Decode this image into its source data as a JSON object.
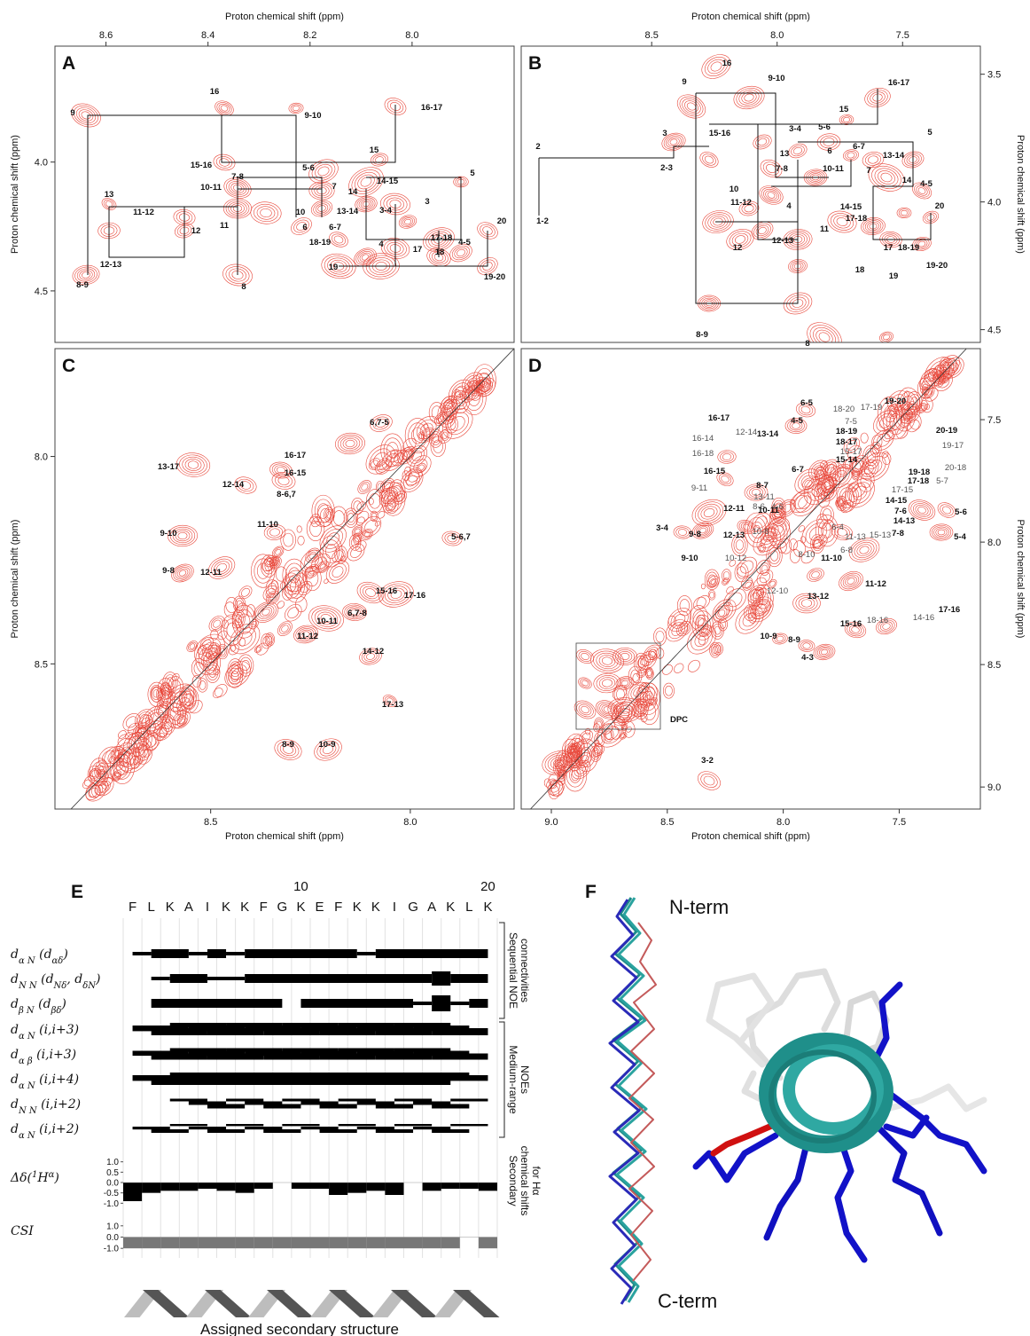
{
  "chart_data": [
    {
      "type": "contour",
      "panel_label": "A",
      "xlabel": "Proton chemical shift (ppm)",
      "ylabel": "Proton chemical shift (ppm)",
      "xaxis": "top",
      "yaxis": "left",
      "xlim": [
        8.7,
        7.8
      ],
      "ylim": [
        4.7,
        3.55
      ],
      "xticks": [
        8.6,
        8.4,
        8.2,
        {
          "value": 8,
          "label": "8.0"
        }
      ],
      "yticks": [
        {
          "value": 4,
          "label": "4.0"
        },
        4.5
      ],
      "annotations": [
        "9",
        "16",
        "9-10",
        "16-17",
        "15-16",
        "15",
        "5-6",
        "5",
        "13",
        "10-11",
        "7-8",
        "7",
        "14-15",
        "14",
        "13-14",
        "3-4",
        "3",
        "11-12",
        "10",
        "11",
        "6",
        "6-7",
        "17-18",
        "20",
        "12",
        "18-19",
        "4",
        "17",
        "18",
        "4-5",
        "12-13",
        "19",
        "8-9",
        "8",
        "19-20"
      ]
    },
    {
      "type": "contour",
      "panel_label": "B",
      "xlabel": "Proton chemical shift (ppm)",
      "ylabel": "Proton chemical shift (ppm)",
      "xaxis": "top",
      "yaxis": "right",
      "xlim": [
        9.02,
        7.19
      ],
      "ylim": [
        4.55,
        3.39
      ],
      "xticks": [
        8.5,
        {
          "value": 8,
          "label": "8.0"
        },
        7.5
      ],
      "yticks": [
        3.5,
        {
          "value": 4,
          "label": "4.0"
        },
        4.5
      ],
      "annotations": [
        "16",
        "9",
        "9-10",
        "16-17",
        "15",
        "15-16",
        "3",
        "3-4",
        "5-6",
        "5",
        "2",
        "2-3",
        "6",
        "6-7",
        "13-14",
        "13",
        "7-8",
        "10-11",
        "7",
        "14",
        "10",
        "4-5",
        "11-12",
        "4",
        "14-15",
        "17-18",
        "20",
        "1-2",
        "12",
        "12-13",
        "11",
        "17",
        "18-19",
        "18",
        "19",
        "19-20",
        "8-9",
        "8"
      ]
    },
    {
      "type": "contour",
      "panel_label": "C",
      "xlabel": "Proton chemical shift (ppm)",
      "ylabel": "Proton chemical shift (ppm)",
      "xaxis": "bottom",
      "yaxis": "left",
      "xlim": [
        8.89,
        7.74
      ],
      "ylim": [
        8.85,
        7.74
      ],
      "xticks": [
        8.5,
        {
          "value": 8,
          "label": "8.0"
        }
      ],
      "yticks": [
        {
          "value": 8,
          "label": "8.0"
        },
        8.5
      ],
      "annotations": [
        "6,7-5",
        "16-17",
        "13-17",
        "16-15",
        "12-14",
        "8-6,7",
        "5-6,7",
        "11-10",
        "9-10",
        "9-8",
        "12-11",
        "15-16",
        "17-16",
        "10-11",
        "6,7-8",
        "11-12",
        "14-12",
        "17-13",
        "8-9",
        "10-9"
      ]
    },
    {
      "type": "contour",
      "panel_label": "D",
      "xlabel": "Proton chemical shift (ppm)",
      "ylabel": "Proton chemical shift (ppm)",
      "xaxis": "bottom",
      "yaxis": "right",
      "xlim": [
        9.13,
        7.15
      ],
      "ylim": [
        9.09,
        7.21
      ],
      "xticks": [
        {
          "value": 9,
          "label": "9.0"
        },
        8.5,
        {
          "value": 8,
          "label": "8.0"
        },
        7.5
      ],
      "yticks": [
        7.5,
        {
          "value": 8,
          "label": "8.0"
        },
        8.5,
        {
          "value": 9,
          "label": "9.0"
        }
      ],
      "annotations": [
        "6-5",
        "4-5",
        "19-20",
        "17-19",
        "18-20",
        "7-5",
        "18-19",
        "18-17",
        "15-17",
        "16-17",
        "12-14",
        "16-14",
        "13-14",
        "15-14",
        "20-19",
        "16-18",
        "6-7",
        "19-17",
        "8-7",
        "20-18",
        "19-18",
        "16-15",
        "13-11",
        "17-18",
        "5-7",
        "8-6",
        "4-6",
        "17-15",
        "9-11",
        "12-11",
        "10-11",
        "14-15",
        "3-4",
        "7-6",
        "5-6",
        "9-8",
        "12-13",
        "10-8",
        "6-4",
        "11-13",
        "15-13",
        "14-13",
        "5-4",
        "7-8",
        "9-10",
        "10-12",
        "8-10",
        "6-8",
        "11-10",
        "12-10",
        "13-12",
        "11-12",
        "17-16",
        "15-16",
        "18-16",
        "14-16",
        "10-9",
        "8-9",
        "4-3",
        "DPC",
        "3-2"
      ]
    }
  ],
  "panel_e": {
    "panel_label": "E",
    "sequence": [
      "F",
      "L",
      "K",
      "A",
      "I",
      "K",
      "K",
      "F",
      "G",
      "K",
      "E",
      "F",
      "K",
      "K",
      "I",
      "G",
      "A",
      "K",
      "L",
      "K"
    ],
    "residue_ticks": [
      10,
      20
    ],
    "row_labels": [
      [
        "d",
        "α N",
        " (d",
        "αδ",
        ")"
      ],
      [
        "d",
        "N N",
        " (d",
        "Nδ",
        ", d",
        "δN",
        ")"
      ],
      [
        "d",
        "β N",
        " (d",
        "βδ",
        ")"
      ],
      [
        "d",
        "α N",
        " (i,i+3)"
      ],
      [
        "d",
        "α β",
        " (i,i+3)"
      ],
      [
        "d",
        "α N",
        " (i,i+4)"
      ],
      [
        "d",
        "N N",
        " (i,i+2)"
      ],
      [
        "d",
        "α N",
        " (i,i+2)"
      ]
    ],
    "bracket_labels": [
      [
        "Sequential NOE",
        "connectivities"
      ],
      [
        "Medium-range",
        "NOEs"
      ],
      [
        "Secondary",
        "chemical shifts",
        "for Hα"
      ]
    ],
    "delta": {
      "label": [
        "Δδ(",
        "1",
        "H",
        "α",
        ")"
      ],
      "values": [
        -0.9,
        -0.5,
        -0.4,
        -0.4,
        -0.3,
        -0.4,
        -0.5,
        -0.3,
        0.0,
        -0.3,
        -0.3,
        -0.6,
        -0.5,
        -0.4,
        -0.6,
        0.0,
        -0.4,
        -0.3,
        -0.3,
        -0.4
      ],
      "ylim": [
        -1.2,
        1.2
      ],
      "yticks": [
        {
          "value": 1,
          "label": "1.0"
        },
        0.5,
        {
          "value": 0,
          "label": "0.0"
        },
        -0.5,
        {
          "value": -1,
          "label": "-1.0"
        }
      ]
    },
    "csi": {
      "label": "CSI",
      "values": [
        -1,
        -1,
        -1,
        -1,
        -1,
        -1,
        -1,
        -1,
        -1,
        -1,
        -1,
        -1,
        -1,
        -1,
        -1,
        -1,
        -1,
        -1,
        0,
        -1
      ],
      "ylim": [
        -1.3,
        1.3
      ],
      "yticks": [
        {
          "value": 1,
          "label": "1.0"
        },
        {
          "value": 0,
          "label": "0.0"
        },
        {
          "value": -1,
          "label": "-1.0"
        }
      ]
    },
    "structure_label": "Assigned secondary structure"
  },
  "panel_f": {
    "panel_label": "F",
    "n_term": "N-term",
    "c_term": "C-term"
  }
}
